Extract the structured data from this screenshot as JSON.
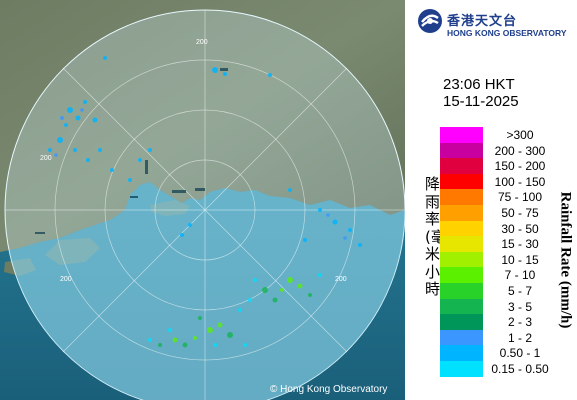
{
  "map": {
    "range_labels": [
      "200",
      "200",
      "200",
      "200"
    ],
    "copyright": "© Hong Kong Observatory"
  },
  "header": {
    "org_name_cn": "香港天文台",
    "org_name_en": "HONG KONG OBSERVATORY"
  },
  "timestamp": {
    "time": "23:06 HKT",
    "date": "15-11-2025"
  },
  "legend": {
    "title_cn": "降雨率(毫米/小時)",
    "title_en": "Rainfall Rate (mm/h)",
    "items": [
      {
        "label": ">300",
        "color": "#ff00ff"
      },
      {
        "label": "200 - 300",
        "color": "#c800a0"
      },
      {
        "label": "150 - 200",
        "color": "#e00040"
      },
      {
        "label": "100 - 150",
        "color": "#ff0000"
      },
      {
        "label": "75 - 100",
        "color": "#ff7800"
      },
      {
        "label": "50 - 75",
        "color": "#ffa000"
      },
      {
        "label": "30 - 50",
        "color": "#ffd200"
      },
      {
        "label": "15 - 30",
        "color": "#e6e600"
      },
      {
        "label": "10 - 15",
        "color": "#a0f000"
      },
      {
        "label": "7 - 10",
        "color": "#5af000"
      },
      {
        "label": "5 - 7",
        "color": "#28d228"
      },
      {
        "label": "3 - 5",
        "color": "#14b450"
      },
      {
        "label": "2 - 3",
        "color": "#00965a"
      },
      {
        "label": "1 - 2",
        "color": "#3c96ff"
      },
      {
        "label": "0.50 - 1",
        "color": "#00b4ff"
      },
      {
        "label": "0.15 - 0.50",
        "color": "#00e0ff"
      }
    ]
  }
}
